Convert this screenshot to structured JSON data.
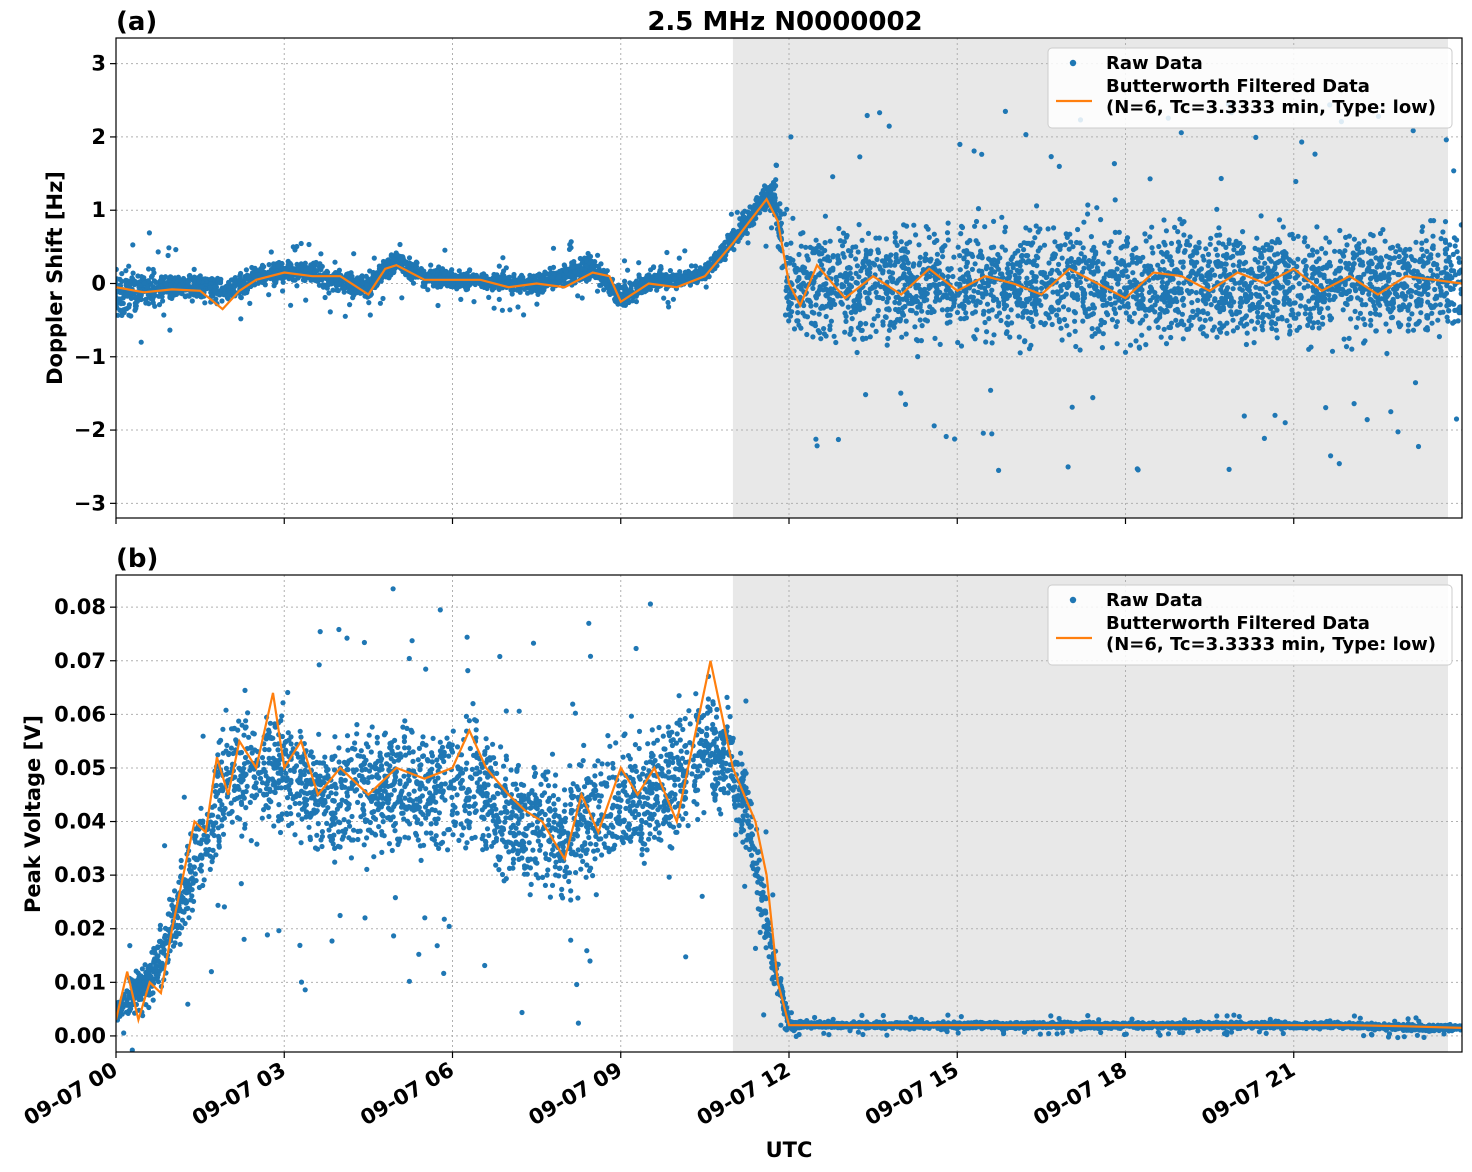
{
  "figure": {
    "title": "2.5 MHz N0000002",
    "xlabel": "UTC",
    "x_tick_labels": [
      "09-07 00",
      "09-07 03",
      "09-07 06",
      "09-07 09",
      "09-07 12",
      "09-07 15",
      "09-07 18",
      "09-07 21"
    ],
    "colors": {
      "raw": "#1f77b4",
      "filtered": "#ff7f0e",
      "shade": "#e8e8e8",
      "grid": "#b0b0b0"
    }
  },
  "chart_data": [
    {
      "type": "scatter",
      "panel_label": "(a)",
      "ylabel": "Doppler Shift [Hz]",
      "x_unit": "hours UTC since 09-07 00",
      "xlim": [
        0,
        24
      ],
      "ylim": [
        -3.2,
        3.35
      ],
      "y_ticks": [
        3,
        2,
        1,
        0,
        -1,
        -2,
        -3
      ],
      "y_tick_labels": [
        "3",
        "2",
        "1",
        "0",
        "−1",
        "−2",
        "−3"
      ],
      "grid": true,
      "legend_position": "top-right",
      "shaded_region": [
        11,
        23.75
      ],
      "series": [
        {
          "name": "Raw Data",
          "style": "points",
          "x": [
            0,
            0.5,
            1,
            1.5,
            2,
            2.5,
            3,
            3.5,
            4,
            4.5,
            5,
            5.5,
            6,
            6.5,
            7,
            7.5,
            8,
            8.5,
            9,
            9.5,
            10,
            10.5,
            11,
            11.5,
            11.75,
            12,
            12.5,
            13,
            14,
            15,
            16,
            17,
            18,
            19,
            20,
            21,
            22,
            23,
            24
          ],
          "y_center": [
            -0.1,
            -0.1,
            -0.05,
            -0.05,
            -0.1,
            0.1,
            0.15,
            0.15,
            0.0,
            -0.05,
            0.3,
            0.1,
            0.05,
            0.05,
            0.0,
            0.0,
            0.1,
            0.25,
            -0.2,
            0.05,
            0.05,
            0.15,
            0.6,
            1.1,
            1.2,
            -0.1,
            0.0,
            0.0,
            0.0,
            0.0,
            0.0,
            0.0,
            0.0,
            0.0,
            0.0,
            0.0,
            0.0,
            0.0,
            0.0
          ],
          "y_spread": [
            0.6,
            0.45,
            0.3,
            0.3,
            0.3,
            0.25,
            0.25,
            0.25,
            0.25,
            0.3,
            0.25,
            0.25,
            0.2,
            0.2,
            0.2,
            0.25,
            0.25,
            0.25,
            0.3,
            0.25,
            0.2,
            0.2,
            0.25,
            0.3,
            0.4,
            1.3,
            1.35,
            1.35,
            1.35,
            1.35,
            1.35,
            1.35,
            1.35,
            1.35,
            1.35,
            1.35,
            1.35,
            1.35,
            1.35
          ]
        },
        {
          "name": "Butterworth Filtered Data\n(N=6, Tc=3.3333 min, Type: low)",
          "style": "line",
          "x": [
            0,
            0.5,
            1,
            1.5,
            1.9,
            2.2,
            2.5,
            3,
            3.5,
            4,
            4.5,
            4.8,
            5,
            5.5,
            6,
            6.5,
            7,
            7.5,
            8,
            8.5,
            8.8,
            9,
            9.5,
            10,
            10.5,
            11,
            11.3,
            11.6,
            11.8,
            12,
            12.2,
            12.5,
            13,
            13.5,
            14,
            14.5,
            15,
            15.5,
            16,
            16.5,
            17,
            17.5,
            18,
            18.5,
            19,
            19.5,
            20,
            20.5,
            21,
            21.5,
            22,
            22.5,
            23,
            23.5,
            24
          ],
          "y": [
            -0.05,
            -0.12,
            -0.08,
            -0.1,
            -0.35,
            -0.1,
            0.05,
            0.15,
            0.1,
            0.1,
            -0.15,
            0.2,
            0.25,
            0.05,
            0.05,
            0.05,
            -0.05,
            0.0,
            -0.05,
            0.15,
            0.1,
            -0.25,
            0.0,
            -0.05,
            0.1,
            0.55,
            0.85,
            1.15,
            0.85,
            0.0,
            -0.3,
            0.25,
            -0.2,
            0.1,
            -0.15,
            0.2,
            -0.1,
            0.1,
            0.0,
            -0.15,
            0.2,
            0.0,
            -0.2,
            0.15,
            0.1,
            -0.1,
            0.15,
            0.0,
            0.2,
            -0.1,
            0.1,
            -0.15,
            0.1,
            0.05,
            0.0
          ]
        }
      ]
    },
    {
      "type": "scatter",
      "panel_label": "(b)",
      "ylabel": "Peak Voltage [V]",
      "x_unit": "hours UTC since 09-07 00",
      "xlim": [
        0,
        24
      ],
      "ylim": [
        -0.003,
        0.086
      ],
      "y_ticks": [
        0.08,
        0.07,
        0.06,
        0.05,
        0.04,
        0.03,
        0.02,
        0.01,
        0.0
      ],
      "y_tick_labels": [
        "0.08",
        "0.07",
        "0.06",
        "0.05",
        "0.04",
        "0.03",
        "0.02",
        "0.01",
        "0.00"
      ],
      "grid": true,
      "legend_position": "top-right",
      "shaded_region": [
        11,
        23.75
      ],
      "series": [
        {
          "name": "Raw Data",
          "style": "points",
          "x": [
            0,
            0.3,
            0.6,
            1,
            1.5,
            2,
            2.5,
            3,
            3.5,
            4,
            4.5,
            5,
            5.5,
            6,
            6.5,
            7,
            7.5,
            8,
            8.5,
            9,
            9.5,
            10,
            10.5,
            11,
            11.3,
            11.6,
            12,
            12.5,
            13,
            14,
            15,
            16,
            17,
            18,
            19,
            20,
            21,
            22,
            23,
            24
          ],
          "y_center": [
            0.004,
            0.008,
            0.01,
            0.02,
            0.035,
            0.048,
            0.05,
            0.05,
            0.045,
            0.045,
            0.046,
            0.046,
            0.047,
            0.047,
            0.046,
            0.04,
            0.04,
            0.037,
            0.042,
            0.044,
            0.045,
            0.048,
            0.055,
            0.05,
            0.04,
            0.02,
            0.002,
            0.002,
            0.002,
            0.002,
            0.002,
            0.002,
            0.002,
            0.002,
            0.002,
            0.002,
            0.002,
            0.002,
            0.0015,
            0.0015
          ],
          "y_spread": [
            0.003,
            0.006,
            0.008,
            0.012,
            0.015,
            0.02,
            0.02,
            0.02,
            0.02,
            0.02,
            0.02,
            0.02,
            0.02,
            0.02,
            0.02,
            0.02,
            0.02,
            0.02,
            0.02,
            0.02,
            0.02,
            0.02,
            0.02,
            0.015,
            0.012,
            0.01,
            0.0015,
            0.001,
            0.001,
            0.001,
            0.001,
            0.001,
            0.001,
            0.001,
            0.001,
            0.001,
            0.001,
            0.001,
            0.001,
            0.001
          ]
        },
        {
          "name": "Butterworth Filtered Data\n(N=6, Tc=3.3333 min, Type: low)",
          "style": "line",
          "x": [
            0,
            0.2,
            0.4,
            0.6,
            0.8,
            1.0,
            1.2,
            1.4,
            1.6,
            1.8,
            2.0,
            2.2,
            2.5,
            2.8,
            3.0,
            3.3,
            3.6,
            4.0,
            4.5,
            5.0,
            5.5,
            6.0,
            6.3,
            6.6,
            7.0,
            7.3,
            7.6,
            8.0,
            8.3,
            8.6,
            9.0,
            9.3,
            9.6,
            10.0,
            10.3,
            10.6,
            10.8,
            11.0,
            11.2,
            11.4,
            11.6,
            11.8,
            12.0,
            12.5,
            13,
            14,
            15,
            16,
            17,
            18,
            19,
            20,
            21,
            22,
            23,
            24
          ],
          "y": [
            0.003,
            0.012,
            0.003,
            0.01,
            0.008,
            0.02,
            0.03,
            0.04,
            0.038,
            0.052,
            0.045,
            0.055,
            0.05,
            0.064,
            0.05,
            0.055,
            0.045,
            0.05,
            0.045,
            0.05,
            0.048,
            0.05,
            0.057,
            0.05,
            0.045,
            0.042,
            0.04,
            0.033,
            0.045,
            0.038,
            0.05,
            0.045,
            0.05,
            0.04,
            0.055,
            0.07,
            0.06,
            0.05,
            0.045,
            0.04,
            0.03,
            0.01,
            0.002,
            0.002,
            0.002,
            0.002,
            0.002,
            0.002,
            0.002,
            0.002,
            0.002,
            0.002,
            0.002,
            0.002,
            0.0018,
            0.0015
          ]
        }
      ]
    }
  ]
}
